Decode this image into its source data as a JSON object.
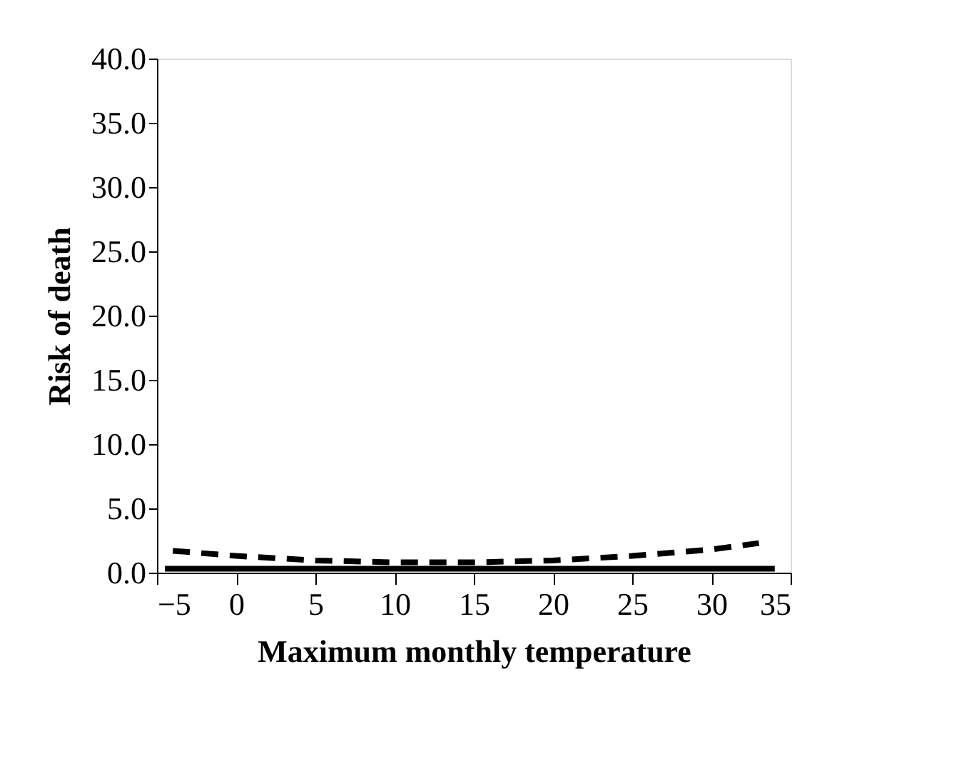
{
  "chart_data": {
    "type": "line",
    "xlabel": "Maximum monthly temperature",
    "ylabel": "Risk of death",
    "xlim": [
      -5,
      35
    ],
    "xticks": [
      -5,
      0,
      5,
      10,
      15,
      20,
      25,
      30,
      35
    ],
    "ylim": [
      0,
      40
    ],
    "yticks": [
      {
        "value": 0,
        "label": "0.0"
      },
      {
        "value": 5,
        "label": "5.0"
      },
      {
        "value": 10,
        "label": "10.0"
      },
      {
        "value": 15,
        "label": "15.0"
      },
      {
        "value": 20,
        "label": "20.0"
      },
      {
        "value": 25,
        "label": "25.0"
      },
      {
        "value": 30,
        "label": "30.0"
      },
      {
        "value": 35,
        "label": "35.0"
      },
      {
        "value": 40,
        "label": "40.0"
      }
    ],
    "grid": false,
    "marker": "none",
    "series": [
      {
        "color": "#000000",
        "line_style": "solid",
        "x": [
          -4.5,
          0,
          5,
          10,
          15,
          20,
          25,
          30,
          34
        ],
        "values": [
          0.3,
          0.3,
          0.3,
          0.3,
          0.3,
          0.3,
          0.3,
          0.3,
          0.3
        ]
      },
      {
        "color": "#000000",
        "line_style": "dashed",
        "x": [
          -4,
          0,
          5,
          10,
          15,
          20,
          25,
          30,
          33
        ],
        "values": [
          1.7,
          1.3,
          0.95,
          0.8,
          0.8,
          0.95,
          1.3,
          1.8,
          2.3
        ]
      }
    ]
  }
}
